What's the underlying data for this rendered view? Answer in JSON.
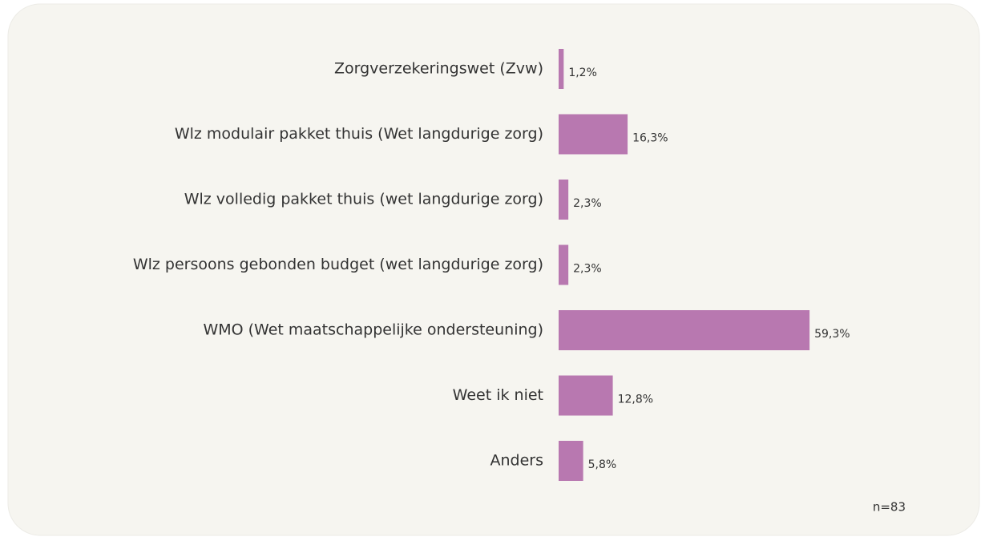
{
  "chart_data": {
    "type": "bar",
    "orientation": "horizontal",
    "categories": [
      "Zorgverzekeringswet (Zvw)",
      "Wlz modulair pakket thuis (Wet langdurige zorg)",
      "Wlz volledig pakket thuis (wet langdurige zorg)",
      "Wlz persoons gebonden budget (wet langdurige zorg)",
      "WMO (Wet maatschappelijke ondersteuning)",
      "Weet ik niet",
      "Anders"
    ],
    "values": [
      1.2,
      16.3,
      2.3,
      2.3,
      59.3,
      12.8,
      5.8
    ],
    "value_labels": [
      "1,2%",
      "16,3%",
      "2,3%",
      "2,3%",
      "59,3%",
      "12,8%",
      "5,8%"
    ],
    "color": "#b878b0",
    "annotation": "n=83"
  }
}
